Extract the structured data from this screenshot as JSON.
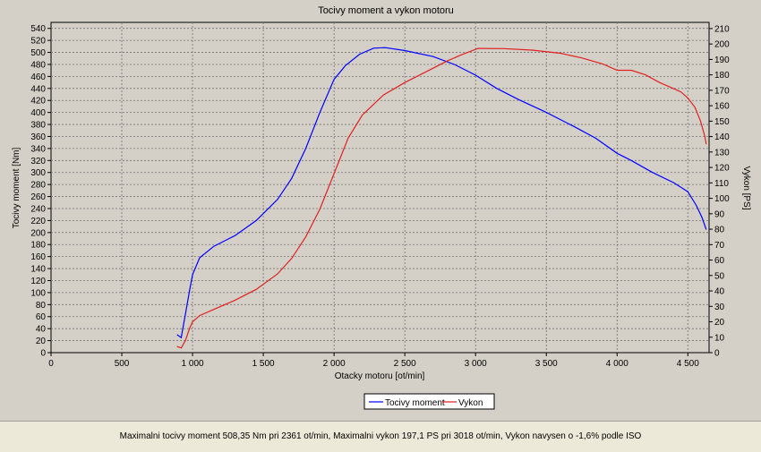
{
  "chart_data": {
    "type": "line",
    "title": "Tocivy moment a vykon motoru",
    "xlabel": "Otacky motoru [ot/min]",
    "ylabel_left": "Tocivy moment [Nm]",
    "ylabel_right": "Vykon [PS]",
    "xlim": [
      0,
      4650
    ],
    "ylim_left": [
      0,
      550
    ],
    "ylim_right": [
      0,
      214
    ],
    "x_ticks": [
      0,
      500,
      1000,
      1500,
      2000,
      2500,
      3000,
      3500,
      4000,
      4500
    ],
    "x_tick_labels": [
      "0",
      "500",
      "1 000",
      "1 500",
      "2 000",
      "2 500",
      "3 000",
      "3 500",
      "4 000",
      "4 500"
    ],
    "y_left_ticks": [
      0,
      20,
      40,
      60,
      80,
      100,
      120,
      140,
      160,
      180,
      200,
      220,
      240,
      260,
      280,
      300,
      320,
      340,
      360,
      380,
      400,
      420,
      440,
      460,
      480,
      500,
      520,
      540
    ],
    "y_right_ticks": [
      0,
      10,
      20,
      30,
      40,
      50,
      60,
      70,
      80,
      90,
      100,
      110,
      120,
      130,
      140,
      150,
      160,
      170,
      180,
      190,
      200,
      210
    ],
    "grid": true,
    "legend_position": "bottom-center",
    "series": [
      {
        "name": "Tocivy moment",
        "axis": "left",
        "color": "#0000ff",
        "x": [
          890,
          920,
          950,
          980,
          1000,
          1050,
          1150,
          1300,
          1450,
          1600,
          1700,
          1800,
          1900,
          2000,
          2080,
          2180,
          2280,
          2361,
          2500,
          2700,
          2850,
          3000,
          3150,
          3300,
          3500,
          3700,
          3850,
          4000,
          4100,
          4250,
          4400,
          4500,
          4560,
          4600,
          4630
        ],
        "y": [
          30,
          25,
          65,
          105,
          130,
          158,
          177,
          195,
          220,
          255,
          290,
          340,
          400,
          455,
          478,
          497,
          507,
          508,
          503,
          493,
          480,
          462,
          440,
          422,
          400,
          376,
          357,
          332,
          320,
          300,
          283,
          268,
          245,
          225,
          205
        ]
      },
      {
        "name": "Vykon",
        "axis": "right",
        "color": "#e02020",
        "x": [
          890,
          920,
          950,
          980,
          1000,
          1050,
          1150,
          1300,
          1450,
          1600,
          1700,
          1800,
          1900,
          2000,
          2100,
          2200,
          2350,
          2500,
          2650,
          2800,
          2900,
          3018,
          3200,
          3400,
          3600,
          3750,
          3900,
          4000,
          4100,
          4200,
          4300,
          4400,
          4450,
          4500,
          4550,
          4590,
          4620,
          4630
        ],
        "y": [
          4,
          3,
          8,
          16,
          20,
          24,
          28,
          34,
          41,
          51,
          61,
          75,
          93,
          116,
          139,
          154,
          167,
          175,
          182,
          189,
          193,
          197.1,
          197,
          196,
          194,
          191,
          187,
          183,
          183,
          180,
          175,
          171,
          169,
          165,
          159,
          150,
          140,
          135
        ]
      }
    ],
    "footer_text": "Maximalni tocivy moment 508,35 Nm pri 2361 ot/min,  Maximalni vykon 197,1 PS pri 3018 ot/min,  Vykon navysen o -1,6% podle ISO"
  }
}
